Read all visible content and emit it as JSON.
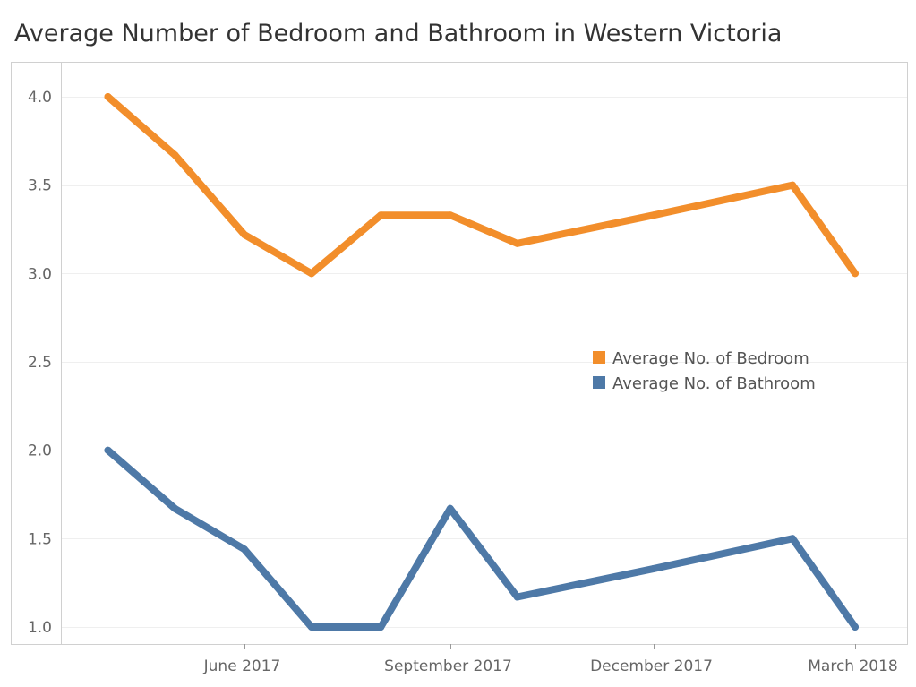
{
  "title": "Average Number of Bedroom and Bathroom in Western Victoria",
  "chart_data": {
    "type": "line",
    "title": "Average Number of Bedroom and Bathroom in Western Victoria",
    "xlabel": "",
    "ylabel": "",
    "x": [
      "2017-04-01",
      "2017-05-01",
      "2017-06-01",
      "2017-07-01",
      "2017-08-01",
      "2017-09-01",
      "2017-10-01",
      "2017-12-01",
      "2018-02-01",
      "2018-03-01"
    ],
    "x_ticks": [
      {
        "date": "2017-06-01",
        "label": "June 2017"
      },
      {
        "date": "2017-09-01",
        "label": "September 2017"
      },
      {
        "date": "2017-12-01",
        "label": "December 2017"
      },
      {
        "date": "2018-03-01",
        "label": "March 2018"
      }
    ],
    "xlim": [
      "2017-03-11",
      "2018-03-21"
    ],
    "ylim": [
      0.95,
      4.1
    ],
    "y_ticks": [
      1.0,
      1.5,
      2.0,
      2.5,
      3.0,
      3.5,
      4.0
    ],
    "y_tick_labels": [
      "1.0",
      "1.5",
      "2.0",
      "2.5",
      "3.0",
      "3.5",
      "4.0"
    ],
    "grid": true,
    "legend_position": "center-right",
    "series": [
      {
        "name": "Average No. of Bedroom",
        "color": "#f28e2b",
        "values": [
          4.0,
          3.67,
          3.22,
          3.0,
          3.33,
          3.33,
          3.17,
          3.33,
          3.5,
          3.0
        ]
      },
      {
        "name": "Average No. of Bathroom",
        "color": "#4e79a7",
        "values": [
          2.0,
          1.67,
          1.44,
          1.0,
          1.0,
          1.67,
          1.17,
          1.33,
          1.5,
          1.0
        ]
      }
    ]
  }
}
